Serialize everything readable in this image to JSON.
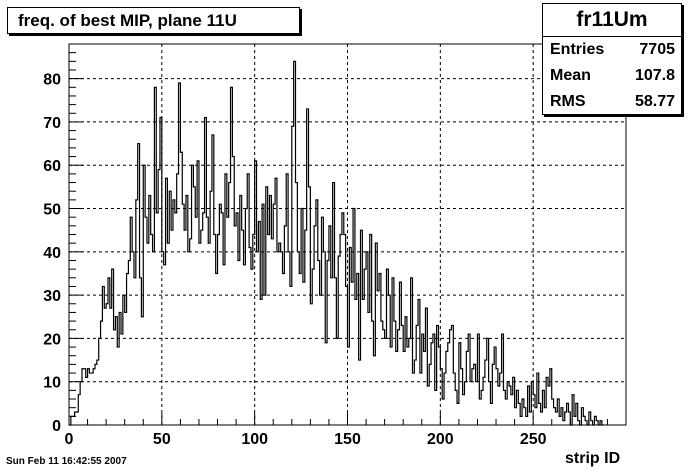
{
  "title": "freq. of best MIP, plane 11U",
  "stats": {
    "name": "fr11Um",
    "rows": [
      {
        "label": "Entries",
        "value": "7705"
      },
      {
        "label": "Mean",
        "value": "107.8"
      },
      {
        "label": "RMS",
        "value": "58.77"
      }
    ]
  },
  "footer_date": "Sun Feb 11 16:42:55 2007",
  "chart_data": {
    "type": "histogram",
    "title": "freq. of best MIP, plane 11U",
    "xlabel": "strip ID",
    "ylabel": "",
    "xlim": [
      0,
      300
    ],
    "ylim": [
      0,
      88
    ],
    "x_ticks": [
      0,
      50,
      100,
      150,
      200,
      250
    ],
    "y_ticks": [
      0,
      10,
      20,
      30,
      40,
      50,
      60,
      70,
      80
    ],
    "grid": true,
    "bin_width": 1,
    "x_start": 0,
    "values": [
      0,
      2,
      2,
      3,
      3,
      7,
      10,
      13,
      13,
      11,
      13,
      12,
      12,
      13,
      14,
      15,
      20,
      24,
      32,
      27,
      28,
      34,
      27,
      36,
      22,
      25,
      18,
      26,
      21,
      30,
      26,
      35,
      38,
      48,
      40,
      34,
      52,
      65,
      34,
      25,
      60,
      48,
      42,
      53,
      44,
      40,
      78,
      49,
      59,
      71,
      40,
      37,
      57,
      42,
      54,
      45,
      52,
      49,
      58,
      79,
      63,
      51,
      45,
      53,
      40,
      43,
      60,
      55,
      48,
      61,
      42,
      45,
      49,
      71,
      48,
      42,
      54,
      67,
      44,
      35,
      44,
      51,
      49,
      37,
      58,
      48,
      56,
      78,
      62,
      46,
      49,
      38,
      53,
      45,
      37,
      50,
      58,
      41,
      36,
      44,
      61,
      40,
      47,
      29,
      51,
      30,
      55,
      44,
      53,
      43,
      51,
      57,
      40,
      42,
      40,
      35,
      46,
      58,
      40,
      32,
      69,
      84,
      56,
      40,
      35,
      50,
      33,
      45,
      73,
      55,
      28,
      36,
      46,
      52,
      38,
      30,
      48,
      40,
      19,
      38,
      46,
      34,
      56,
      34,
      20,
      39,
      44,
      49,
      44,
      32,
      18,
      41,
      33,
      50,
      29,
      35,
      15,
      45,
      29,
      36,
      40,
      26,
      44,
      24,
      16,
      42,
      31,
      35,
      24,
      22,
      20,
      36,
      30,
      18,
      34,
      24,
      17,
      22,
      33,
      23,
      17,
      25,
      18,
      20,
      34,
      12,
      15,
      23,
      29,
      12,
      21,
      17,
      27,
      9,
      14,
      19,
      21,
      8,
      23,
      18,
      13,
      6,
      12,
      17,
      19,
      22,
      23,
      12,
      8,
      5,
      19,
      13,
      7,
      10,
      17,
      21,
      10,
      13,
      14,
      10,
      21,
      6,
      8,
      11,
      15,
      20,
      10,
      5,
      14,
      18,
      13,
      9,
      12,
      21,
      8,
      6,
      10,
      9,
      7,
      11,
      4,
      8,
      5,
      2,
      6,
      4,
      2,
      9,
      3,
      10,
      7,
      4,
      12,
      5,
      3,
      8,
      4,
      11,
      9,
      13,
      6,
      4,
      3,
      6,
      2,
      4,
      1,
      3,
      5,
      3,
      0,
      7,
      2,
      5,
      1,
      0,
      4,
      2,
      1,
      0,
      3,
      1,
      0,
      2,
      1,
      0,
      1,
      0
    ]
  }
}
